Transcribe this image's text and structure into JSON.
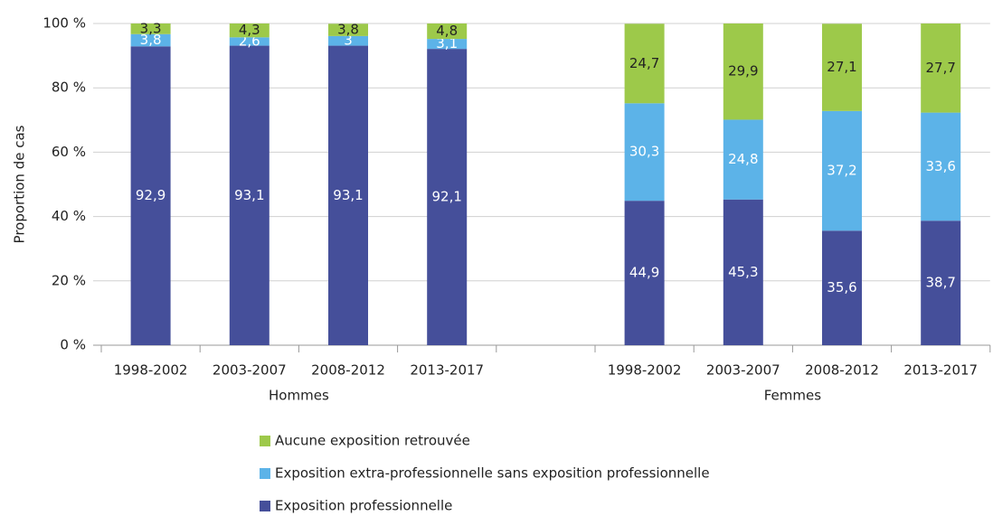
{
  "chart_data": {
    "type": "stacked-bar",
    "y_label": "Proportion de cas",
    "categories": [
      "1998-2002",
      "2003-2007",
      "2008-2012",
      "2013-2017",
      null,
      "1998-2002",
      "2003-2007",
      "2008-2012",
      "2013-2017"
    ],
    "groups": [
      "Hommes",
      "Femmes"
    ],
    "series": [
      {
        "name": "Exposition professionnelle",
        "color": "#454f9a",
        "label_color": "#ffffff",
        "values": [
          92.9,
          93.1,
          93.1,
          92.1,
          null,
          44.9,
          45.3,
          35.6,
          38.7
        ],
        "value_labels": [
          "92,9",
          "93,1",
          "93,1",
          "92,1",
          null,
          "44,9",
          "45,3",
          "35,6",
          "38,7"
        ]
      },
      {
        "name": "Exposition extra-professionnelle sans exposition professionnelle",
        "color": "#5cb3e8",
        "label_color": "#ffffff",
        "values": [
          3.8,
          2.6,
          3,
          3.1,
          null,
          30.3,
          24.8,
          37.2,
          33.6
        ],
        "value_labels": [
          "3,8",
          "2,6",
          "3",
          "3,1",
          null,
          "30,3",
          "24,8",
          "37,2",
          "33,6"
        ]
      },
      {
        "name": "Aucune exposition retrouvée",
        "color": "#9dc94a",
        "label_color": "#222222",
        "values": [
          3.3,
          4.3,
          3.8,
          4.8,
          null,
          24.7,
          29.9,
          27.1,
          27.7
        ],
        "value_labels": [
          "3,3",
          "4,3",
          "3,8",
          "4,8",
          null,
          "24,7",
          "29,9",
          "27,1",
          "27,7"
        ]
      }
    ],
    "ylim": [
      0,
      100
    ],
    "yticks": [
      {
        "value": 0,
        "label": "0 %"
      },
      {
        "value": 20,
        "label": "20 %"
      },
      {
        "value": 40,
        "label": "40 %"
      },
      {
        "value": 60,
        "label": "60 %"
      },
      {
        "value": 80,
        "label": "80 %"
      },
      {
        "value": 100,
        "label": "100 %"
      }
    ],
    "grid": true
  }
}
